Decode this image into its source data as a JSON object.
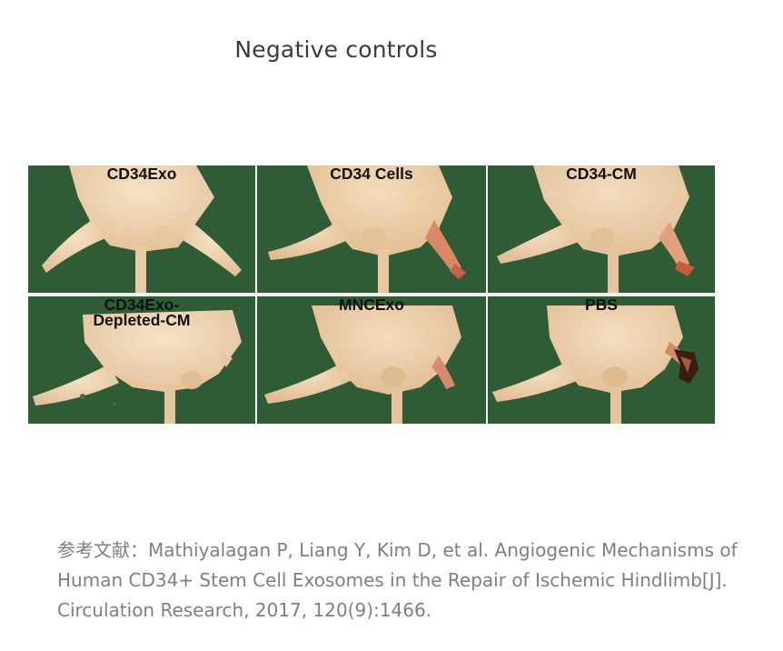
{
  "slide": {
    "title": "Negative controls"
  },
  "figure": {
    "panels": [
      {
        "label": "CD34Exo"
      },
      {
        "label": "CD34 Cells"
      },
      {
        "label": "CD34-CM"
      },
      {
        "label": "CD34Exo-\nDepleted-CM"
      },
      {
        "label": "MNCExo"
      },
      {
        "label": "PBS"
      }
    ]
  },
  "citation": {
    "prefix": "参考文献：",
    "text": "Mathiyalagan P, Liang Y, Kim D, et al. Angiogenic Mechanisms of Human CD34+ Stem Cell Exosomes in the Repair of Ischemic Hindlimb[J]. Circulation Research, 2017, 120(9):1466."
  },
  "colors": {
    "background": "#2f5c36",
    "mouse_skin": "#efd2ad",
    "necrosis": "#3a1e12",
    "reddening": "#d66a4e"
  }
}
